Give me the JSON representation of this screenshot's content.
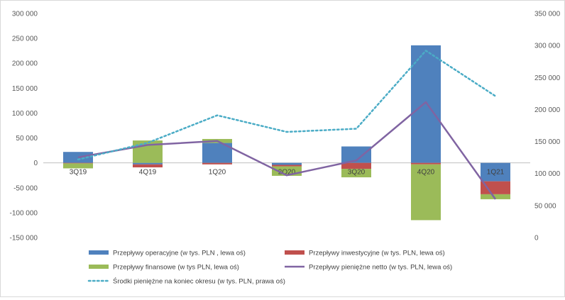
{
  "chart_data": {
    "type": "bar",
    "categories": [
      "3Q19",
      "4Q19",
      "1Q20",
      "2Q20",
      "3Q20",
      "4Q20",
      "1Q21"
    ],
    "left_axis": {
      "ylim": [
        -150000,
        300000
      ],
      "ticks": [
        300000,
        250000,
        200000,
        150000,
        100000,
        50000,
        0,
        -50000,
        -100000,
        -150000
      ],
      "tick_labels": [
        "300 000",
        "250 000",
        "200 000",
        "150 000",
        "100 000",
        "50 000",
        "0",
        "-50 000",
        "-100 000",
        "-150 000"
      ]
    },
    "right_axis": {
      "ylim": [
        0,
        350000
      ],
      "ticks": [
        350000,
        300000,
        250000,
        200000,
        150000,
        100000,
        50000,
        0
      ],
      "tick_labels": [
        "350 000",
        "300 000",
        "250 000",
        "200 000",
        "150 000",
        "100 000",
        "50 000",
        "0"
      ]
    },
    "series": [
      {
        "name": "Przepływy operacyjne (w tys. PLN , lewa oś)",
        "kind": "bar",
        "axis": "left",
        "color": "#4f81bd",
        "values": [
          22000,
          -3000,
          40000,
          -4000,
          33000,
          236000,
          -37000
        ]
      },
      {
        "name": "Przepływy inwestycyjne (w tys. PLN, lewa oś)",
        "kind": "bar",
        "axis": "left",
        "color": "#c0504d",
        "values": [
          -1000,
          -6000,
          -3000,
          -3000,
          -12000,
          -3000,
          -26000
        ]
      },
      {
        "name": "Przepływy finansowe (w tys PLN, lewa oś)",
        "kind": "bar",
        "axis": "left",
        "color": "#9bbb59",
        "values": [
          -10000,
          45000,
          8000,
          -19000,
          -17000,
          -112000,
          -10000
        ]
      },
      {
        "name": "Przepływy pieniężne netto (w tys. PLN, lewa oś)",
        "kind": "line",
        "axis": "left",
        "color": "#8064a2",
        "values": [
          11000,
          36000,
          44000,
          -25000,
          5000,
          122000,
          -73000
        ]
      },
      {
        "name": "Środki pieniężne na koniec okresu (w tys. PLN, prawa oś)",
        "kind": "line-dotted",
        "axis": "right",
        "color": "#4bacc6",
        "values": [
          122000,
          148000,
          191000,
          165000,
          170000,
          292000,
          221000
        ]
      }
    ],
    "stacked": true,
    "grid": false,
    "legend_position": "bottom"
  }
}
